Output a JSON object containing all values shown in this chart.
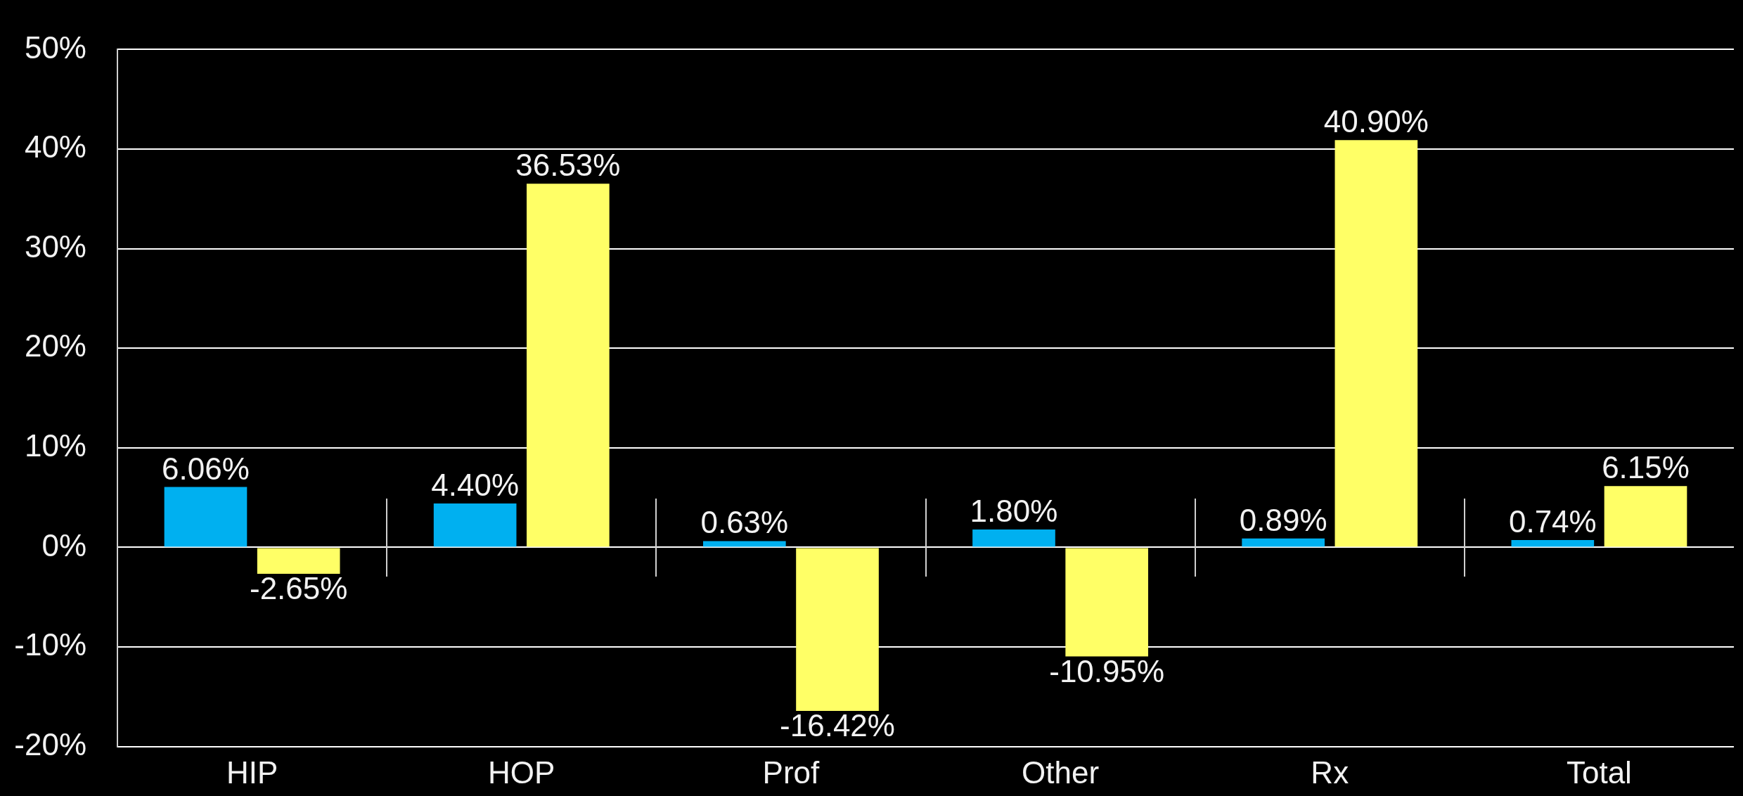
{
  "chart_data": {
    "type": "bar",
    "categories": [
      "HIP",
      "HOP",
      "Prof",
      "Other",
      "Rx",
      "Total"
    ],
    "series": [
      {
        "color": "#00b0f0",
        "values": [
          6.06,
          4.4,
          0.63,
          1.8,
          0.89,
          0.74
        ],
        "value_labels": [
          "6.06%",
          "4.40%",
          "0.63%",
          "1.80%",
          "0.89%",
          "0.74%"
        ]
      },
      {
        "color": "#ffff66",
        "values": [
          -2.65,
          36.53,
          -16.42,
          -10.95,
          40.9,
          6.15
        ],
        "value_labels": [
          "-2.65%",
          "36.53%",
          "-16.42%",
          "-10.95%",
          "40.90%",
          "6.15%"
        ]
      }
    ],
    "ylim": [
      -20,
      50
    ],
    "yticks": [
      {
        "value": -20,
        "label": "-20%"
      },
      {
        "value": -10,
        "label": "-10%"
      },
      {
        "value": 0,
        "label": "0%"
      },
      {
        "value": 10,
        "label": "10%"
      },
      {
        "value": 20,
        "label": "20%"
      },
      {
        "value": 30,
        "label": "30%"
      },
      {
        "value": 40,
        "label": "40%"
      },
      {
        "value": 50,
        "label": "50%"
      }
    ],
    "grid": "y"
  }
}
